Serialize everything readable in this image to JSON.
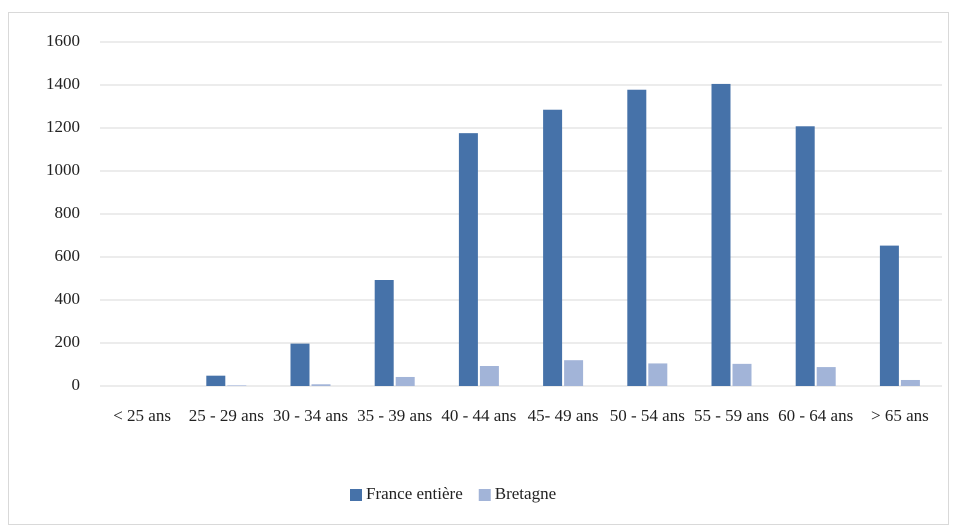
{
  "chart_data": {
    "type": "bar",
    "categories": [
      "< 25 ans",
      "25 - 29 ans",
      "30 - 34 ans",
      "35 - 39 ans",
      "40 - 44 ans",
      "45- 49 ans",
      "50 - 54 ans",
      "55 - 59 ans",
      "60 - 64 ans",
      "> 65 ans"
    ],
    "series": [
      {
        "name": "France entière",
        "color": "#4672a9",
        "values": [
          0,
          48,
          197,
          493,
          1176,
          1285,
          1378,
          1405,
          1208,
          653
        ]
      },
      {
        "name": "Bretagne",
        "color": "#a2b4d8",
        "values": [
          0,
          3,
          8,
          42,
          93,
          120,
          105,
          103,
          88,
          28
        ]
      }
    ],
    "ylim": [
      0,
      1600
    ],
    "yticks": [
      0,
      200,
      400,
      600,
      800,
      1000,
      1200,
      1400,
      1600
    ],
    "grid": true,
    "legend": "bottom"
  }
}
